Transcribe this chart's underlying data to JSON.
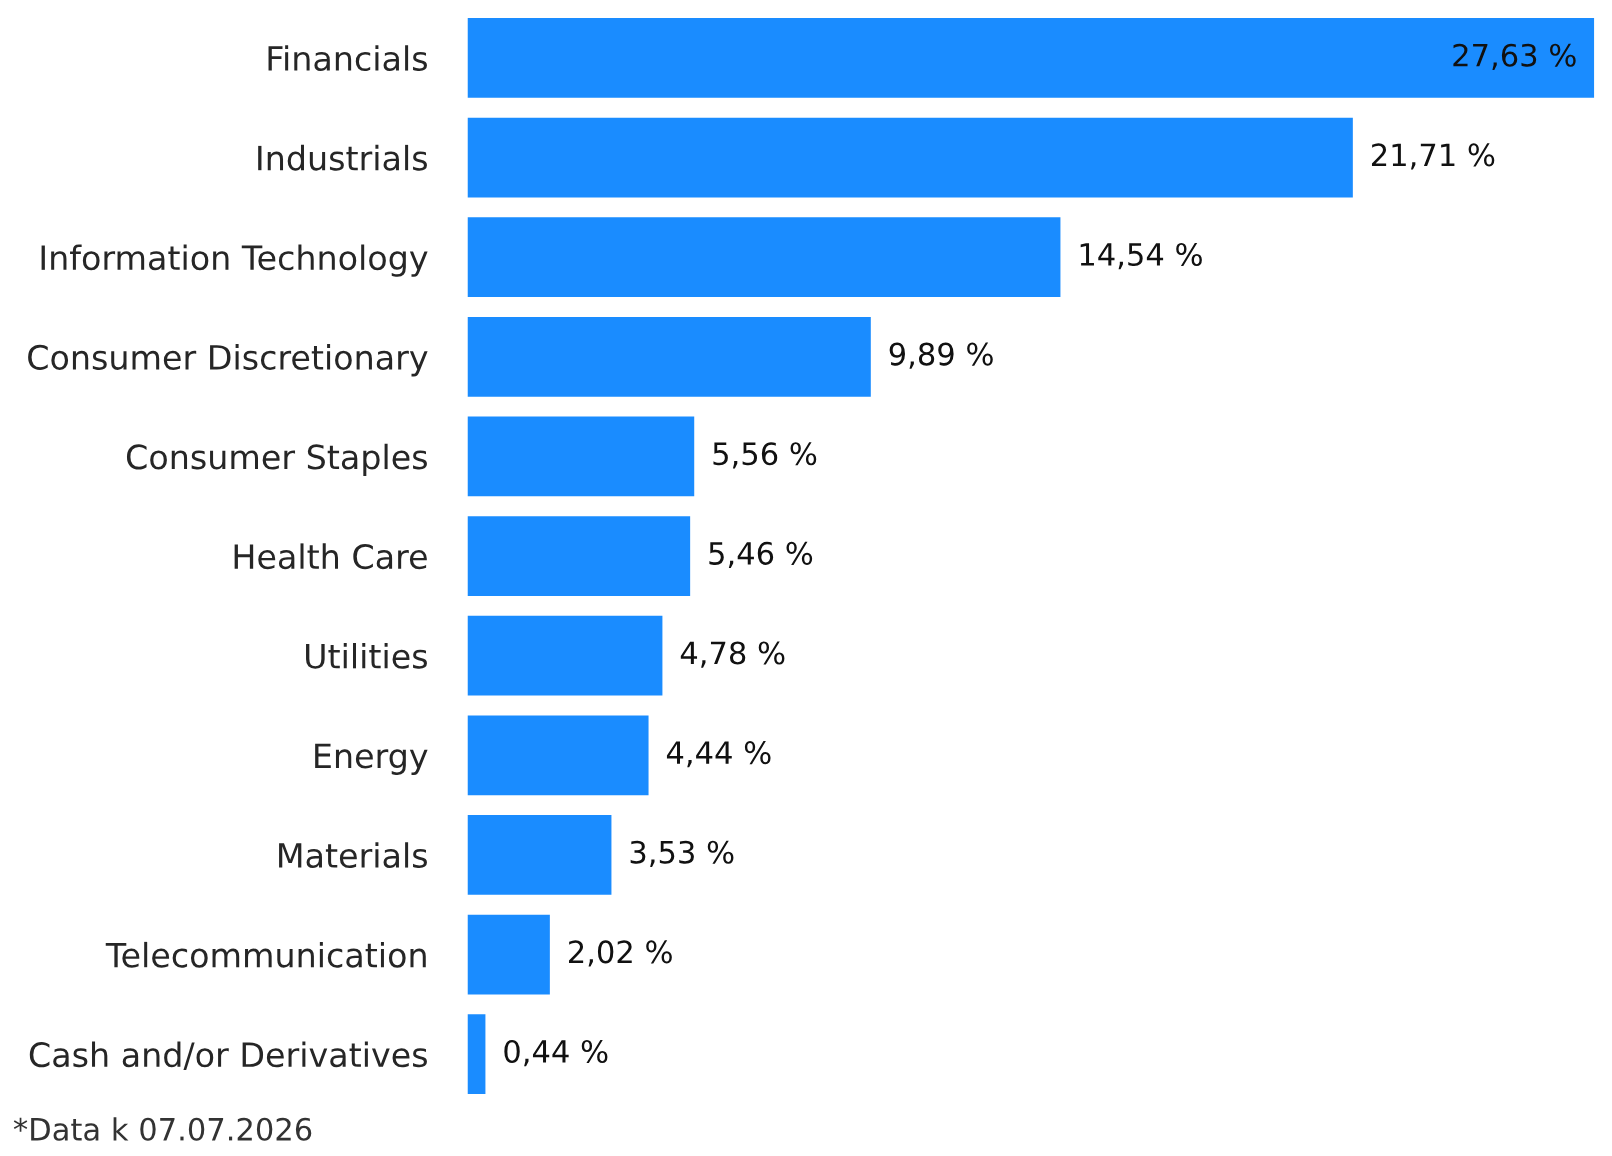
{
  "chart_data": {
    "type": "bar",
    "orientation": "horizontal",
    "categories": [
      "Financials",
      "Industrials",
      "Information Technology",
      "Consumer Discretionary",
      "Consumer Staples",
      "Health Care",
      "Utilities",
      "Energy",
      "Materials",
      "Telecommunication",
      "Cash and/or Derivatives"
    ],
    "values": [
      27.63,
      21.71,
      14.54,
      9.89,
      5.56,
      5.46,
      4.78,
      4.44,
      3.53,
      2.02,
      0.44
    ],
    "value_labels": [
      "27,63 %",
      "21,71 %",
      "14,54 %",
      "9,89 %",
      "5,56 %",
      "5,46 %",
      "4,78 %",
      "4,44 %",
      "3,53 %",
      "2,02 %",
      "0,44 %"
    ],
    "color": "#1a8cff",
    "grid": false,
    "legend": false,
    "annotations": [
      "*Data k 07.07.2026"
    ]
  }
}
